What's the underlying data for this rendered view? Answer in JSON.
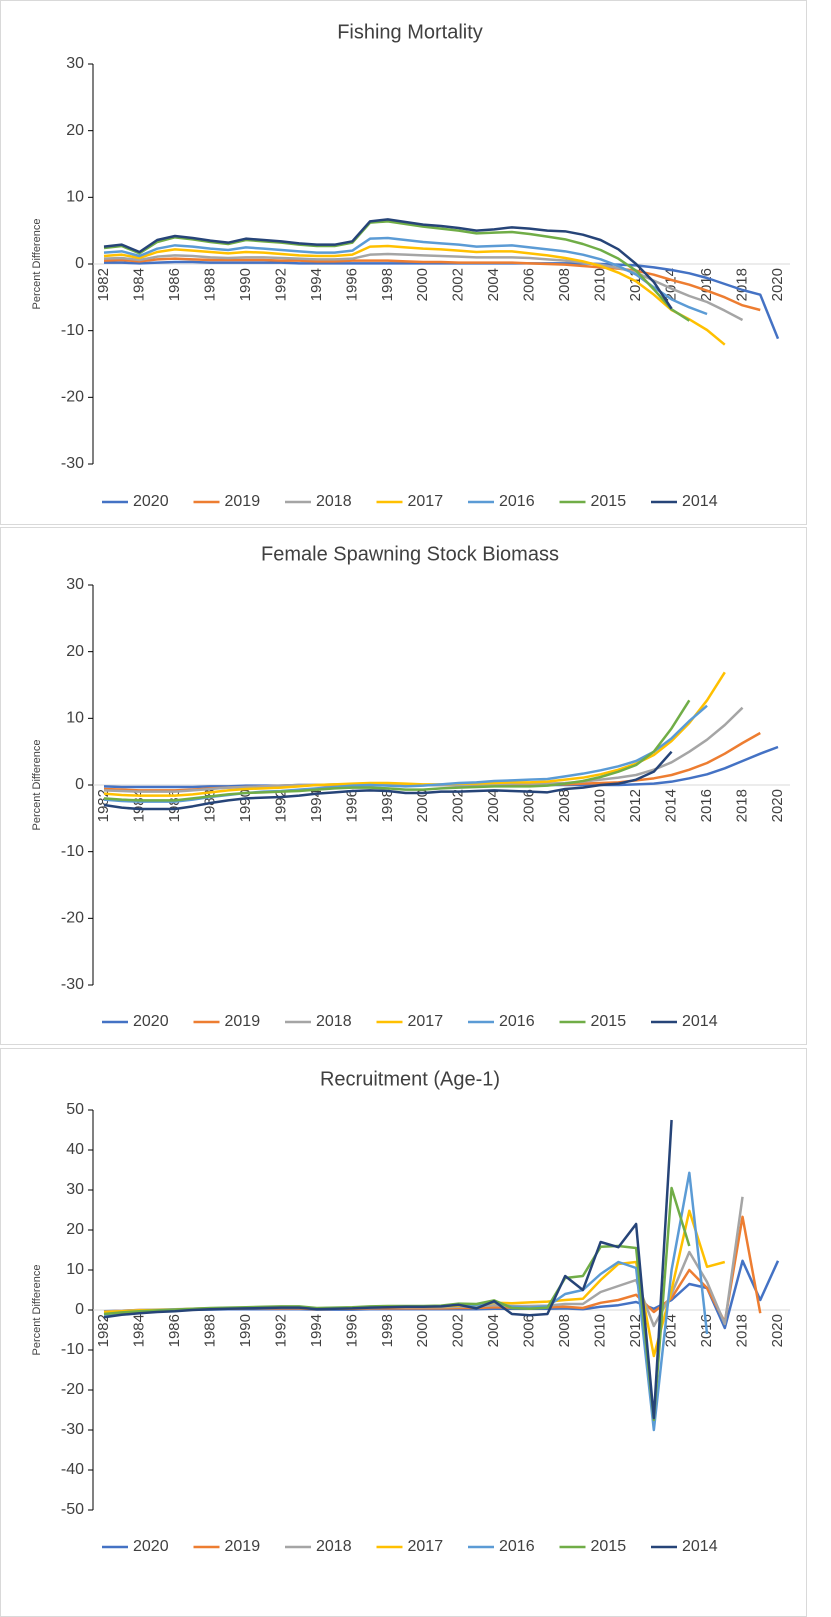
{
  "chart_data": [
    {
      "type": "line",
      "title": "Fishing Mortality",
      "y_label": "Percent Difference",
      "categories": [
        "1982",
        null,
        "1984",
        null,
        "1986",
        null,
        "1988",
        null,
        "1990",
        null,
        "1992",
        null,
        "1994",
        null,
        "1996",
        null,
        "1998",
        null,
        "2000",
        null,
        "2002",
        null,
        "2004",
        null,
        "2006",
        null,
        "2008",
        null,
        "2010",
        null,
        "2012",
        null,
        "2014",
        null,
        "2016",
        null,
        "2018",
        null,
        "2020"
      ],
      "ylim": [
        -30,
        30
      ],
      "yticks": [
        -30,
        -20,
        -10,
        0,
        10,
        20,
        30
      ],
      "grid": false,
      "legend": "bottom",
      "series": [
        {
          "name": "2020",
          "color": "#4472c4",
          "values": [
            0.2,
            0.2,
            0.1,
            0.2,
            0.3,
            0.3,
            0.2,
            0.2,
            0.2,
            0.2,
            0.2,
            0.1,
            0.1,
            0.1,
            0.1,
            0.1,
            0.1,
            0.1,
            0.1,
            0.1,
            0.1,
            0.1,
            0.1,
            0.1,
            0.1,
            0.1,
            0.1,
            0.1,
            0.0,
            -0.1,
            -0.2,
            -0.5,
            -0.9,
            -1.4,
            -2.1,
            -3.0,
            -3.9,
            -4.6,
            -11.2
          ]
        },
        {
          "name": "2019",
          "color": "#ed7d31",
          "values": [
            0.5,
            0.6,
            0.4,
            0.7,
            0.8,
            0.7,
            0.6,
            0.6,
            0.6,
            0.6,
            0.5,
            0.5,
            0.4,
            0.4,
            0.5,
            0.5,
            0.5,
            0.4,
            0.3,
            0.3,
            0.2,
            0.2,
            0.2,
            0.2,
            0.1,
            0.0,
            -0.1,
            -0.3,
            -0.5,
            -0.7,
            -1.0,
            -1.6,
            -2.4,
            -3.1,
            -4.0,
            -5.0,
            -6.2,
            -6.9,
            null
          ]
        },
        {
          "name": "2018",
          "color": "#a5a5a5",
          "values": [
            0.8,
            0.9,
            0.6,
            1.1,
            1.3,
            1.2,
            1.0,
            0.9,
            1.0,
            1.0,
            0.9,
            0.8,
            0.7,
            0.7,
            0.8,
            1.4,
            1.5,
            1.4,
            1.3,
            1.2,
            1.1,
            1.0,
            1.0,
            1.0,
            0.9,
            0.7,
            0.5,
            0.2,
            -0.1,
            -0.6,
            -1.3,
            -2.5,
            -3.7,
            -4.8,
            -5.7,
            -7.0,
            -8.4,
            null,
            null
          ]
        },
        {
          "name": "2017",
          "color": "#ffc000",
          "values": [
            1.2,
            1.4,
            0.9,
            1.8,
            2.2,
            2.0,
            1.8,
            1.6,
            1.8,
            1.7,
            1.5,
            1.3,
            1.2,
            1.2,
            1.4,
            2.6,
            2.7,
            2.5,
            2.3,
            2.2,
            2.0,
            1.8,
            1.9,
            1.9,
            1.6,
            1.3,
            0.9,
            0.4,
            -0.3,
            -1.3,
            -2.6,
            -4.6,
            -6.9,
            -8.3,
            -9.9,
            -12.1,
            null,
            null,
            null
          ]
        },
        {
          "name": "2016",
          "color": "#5b9bd5",
          "values": [
            1.7,
            1.9,
            1.2,
            2.3,
            2.8,
            2.6,
            2.3,
            2.1,
            2.5,
            2.3,
            2.1,
            1.9,
            1.7,
            1.7,
            2.0,
            3.8,
            3.9,
            3.6,
            3.3,
            3.1,
            2.9,
            2.6,
            2.7,
            2.8,
            2.5,
            2.2,
            1.9,
            1.4,
            0.7,
            -0.3,
            -1.6,
            -3.5,
            -5.3,
            -6.5,
            -7.5,
            null,
            null,
            null,
            null
          ]
        },
        {
          "name": "2015",
          "color": "#70ad47",
          "values": [
            2.4,
            2.7,
            1.6,
            3.3,
            4.0,
            3.7,
            3.3,
            3.0,
            3.6,
            3.4,
            3.2,
            2.9,
            2.7,
            2.7,
            3.2,
            6.2,
            6.4,
            6.0,
            5.6,
            5.3,
            5.0,
            4.6,
            4.7,
            4.8,
            4.5,
            4.1,
            3.7,
            3.0,
            2.1,
            0.8,
            -1.0,
            -3.8,
            -6.8,
            -8.5,
            null,
            null,
            null,
            null,
            null
          ]
        },
        {
          "name": "2014",
          "color": "#264478",
          "values": [
            2.6,
            2.9,
            1.8,
            3.6,
            4.2,
            3.9,
            3.5,
            3.2,
            3.8,
            3.6,
            3.4,
            3.1,
            2.9,
            2.9,
            3.4,
            6.4,
            6.7,
            6.3,
            5.9,
            5.7,
            5.4,
            5.0,
            5.2,
            5.5,
            5.3,
            5.0,
            4.9,
            4.4,
            3.6,
            2.2,
            0.0,
            -2.7,
            -6.7,
            null,
            null,
            null,
            null,
            null,
            null
          ]
        }
      ]
    },
    {
      "type": "line",
      "title": "Female Spawning Stock Biomass",
      "y_label": "Percent Difference",
      "categories": [
        "1982",
        null,
        "1984",
        null,
        "1986",
        null,
        "1988",
        null,
        "1990",
        null,
        "1992",
        null,
        "1994",
        null,
        "1996",
        null,
        "1998",
        null,
        "2000",
        null,
        "2002",
        null,
        "2004",
        null,
        "2006",
        null,
        "2008",
        null,
        "2010",
        null,
        "2012",
        null,
        "2014",
        null,
        "2016",
        null,
        "2018",
        null,
        "2020"
      ],
      "ylim": [
        -30,
        30
      ],
      "yticks": [
        -30,
        -20,
        -10,
        0,
        10,
        20,
        30
      ],
      "grid": false,
      "legend": "bottom",
      "series": [
        {
          "name": "2020",
          "color": "#4472c4",
          "values": [
            -0.2,
            -0.3,
            -0.3,
            -0.3,
            -0.3,
            -0.3,
            -0.2,
            -0.2,
            -0.1,
            -0.1,
            -0.1,
            0.0,
            0.0,
            0.0,
            0.0,
            0.0,
            0.0,
            0.0,
            0.0,
            0.0,
            0.0,
            0.0,
            0.0,
            0.0,
            0.0,
            0.0,
            0.0,
            0.0,
            0.0,
            0.0,
            0.1,
            0.2,
            0.5,
            1.0,
            1.6,
            2.5,
            3.6,
            4.7,
            5.7
          ]
        },
        {
          "name": "2019",
          "color": "#ed7d31",
          "values": [
            -0.6,
            -0.7,
            -0.8,
            -0.8,
            -0.8,
            -0.7,
            -0.5,
            -0.4,
            -0.3,
            -0.2,
            -0.1,
            -0.1,
            0.0,
            0.0,
            0.0,
            0.0,
            0.0,
            0.0,
            0.0,
            0.0,
            0.0,
            0.0,
            0.1,
            0.1,
            0.1,
            0.1,
            0.1,
            0.2,
            0.3,
            0.4,
            0.7,
            1.0,
            1.5,
            2.3,
            3.3,
            4.7,
            6.3,
            7.8,
            null
          ]
        },
        {
          "name": "2018",
          "color": "#a5a5a5",
          "values": [
            -0.8,
            -0.9,
            -1.0,
            -1.0,
            -1.0,
            -0.8,
            -0.6,
            -0.4,
            -0.3,
            -0.2,
            -0.1,
            0.0,
            0.0,
            0.1,
            0.1,
            0.1,
            0.1,
            0.0,
            0.0,
            0.0,
            0.0,
            0.1,
            0.1,
            0.2,
            0.2,
            0.2,
            0.3,
            0.5,
            0.8,
            1.1,
            1.5,
            2.3,
            3.4,
            5.0,
            6.8,
            9.0,
            11.6,
            null,
            null
          ]
        },
        {
          "name": "2017",
          "color": "#ffc000",
          "values": [
            -1.3,
            -1.5,
            -1.6,
            -1.6,
            -1.6,
            -1.4,
            -1.1,
            -0.8,
            -0.6,
            -0.5,
            -0.4,
            -0.2,
            0.0,
            0.1,
            0.2,
            0.3,
            0.3,
            0.2,
            0.1,
            0.1,
            0.2,
            0.2,
            0.3,
            0.4,
            0.4,
            0.5,
            0.8,
            1.1,
            1.6,
            2.3,
            3.2,
            4.5,
            6.6,
            9.3,
            12.7,
            16.9,
            null,
            null,
            null
          ]
        },
        {
          "name": "2016",
          "color": "#5b9bd5",
          "values": [
            -2.2,
            -2.4,
            -2.5,
            -2.5,
            -2.5,
            -2.2,
            -1.8,
            -1.5,
            -1.2,
            -1.0,
            -0.9,
            -0.7,
            -0.5,
            -0.3,
            -0.1,
            0.0,
            -0.1,
            -0.2,
            -0.1,
            0.1,
            0.3,
            0.4,
            0.6,
            0.7,
            0.8,
            0.9,
            1.3,
            1.7,
            2.2,
            2.8,
            3.6,
            5.0,
            7.0,
            9.6,
            11.9,
            null,
            null,
            null,
            null
          ]
        },
        {
          "name": "2015",
          "color": "#70ad47",
          "values": [
            -2.0,
            -2.2,
            -2.3,
            -2.3,
            -2.3,
            -2.0,
            -1.7,
            -1.4,
            -1.2,
            -1.1,
            -1.0,
            -0.9,
            -0.7,
            -0.5,
            -0.4,
            -0.4,
            -0.5,
            -0.7,
            -0.7,
            -0.5,
            -0.4,
            -0.3,
            -0.2,
            -0.2,
            -0.2,
            -0.1,
            0.2,
            0.6,
            1.2,
            2.0,
            3.0,
            5.0,
            8.5,
            12.7,
            null,
            null,
            null,
            null,
            null
          ]
        },
        {
          "name": "2014",
          "color": "#264478",
          "values": [
            -3.0,
            -3.4,
            -3.6,
            -3.6,
            -3.6,
            -3.2,
            -2.7,
            -2.3,
            -2.0,
            -1.9,
            -1.8,
            -1.6,
            -1.3,
            -1.1,
            -0.9,
            -0.8,
            -0.9,
            -1.2,
            -1.2,
            -1.0,
            -1.0,
            -0.9,
            -0.8,
            -0.9,
            -1.0,
            -1.1,
            -0.6,
            -0.4,
            0.0,
            0.2,
            0.8,
            2.0,
            5.0,
            null,
            null,
            null,
            null,
            null,
            null
          ]
        }
      ]
    },
    {
      "type": "line",
      "title": "Recruitment (Age-1)",
      "y_label": "Percent Difference",
      "categories": [
        "1982",
        null,
        "1984",
        null,
        "1986",
        null,
        "1988",
        null,
        "1990",
        null,
        "1992",
        null,
        "1994",
        null,
        "1996",
        null,
        "1998",
        null,
        "2000",
        null,
        "2002",
        null,
        "2004",
        null,
        "2006",
        null,
        "2008",
        null,
        "2010",
        null,
        "2012",
        null,
        "2014",
        null,
        "2016",
        null,
        "2018",
        null,
        "2020"
      ],
      "ylim": [
        -50,
        50
      ],
      "yticks": [
        -50,
        -40,
        -30,
        -20,
        -10,
        0,
        10,
        20,
        30,
        40,
        50
      ],
      "grid": false,
      "legend": "bottom",
      "series": [
        {
          "name": "2020",
          "color": "#4472c4",
          "values": [
            -0.3,
            -0.2,
            -0.1,
            0.0,
            0.0,
            0.1,
            0.1,
            0.2,
            0.2,
            0.2,
            0.2,
            0.2,
            0.1,
            0.1,
            0.1,
            0.2,
            0.2,
            0.2,
            0.2,
            0.2,
            0.2,
            0.2,
            0.3,
            0.3,
            0.3,
            0.3,
            0.4,
            0.2,
            0.8,
            1.2,
            2.0,
            0.3,
            2.5,
            6.5,
            5.5,
            -4.5,
            12.3,
            2.5,
            12.3
          ]
        },
        {
          "name": "2019",
          "color": "#ed7d31",
          "values": [
            -0.4,
            -0.2,
            0.0,
            0.0,
            0.1,
            0.2,
            0.3,
            0.3,
            0.4,
            0.4,
            0.4,
            0.4,
            0.2,
            0.3,
            0.3,
            0.4,
            0.4,
            0.4,
            0.4,
            0.4,
            0.5,
            0.5,
            0.7,
            0.6,
            0.6,
            0.7,
            0.8,
            0.5,
            1.8,
            2.5,
            3.8,
            -0.5,
            3.0,
            10.0,
            5.5,
            -3.0,
            23.3,
            -0.8,
            null
          ]
        },
        {
          "name": "2018",
          "color": "#a5a5a5",
          "values": [
            -0.4,
            -0.2,
            0.0,
            0.1,
            0.2,
            0.3,
            0.4,
            0.4,
            0.5,
            0.5,
            0.6,
            0.6,
            0.3,
            0.4,
            0.5,
            0.6,
            0.7,
            0.7,
            0.7,
            0.7,
            0.8,
            0.9,
            1.2,
            1.0,
            1.0,
            1.1,
            1.5,
            1.5,
            4.5,
            6.0,
            7.5,
            -4.0,
            4.0,
            14.5,
            7.0,
            -3.5,
            28.3,
            null,
            null
          ]
        },
        {
          "name": "2017",
          "color": "#ffc000",
          "values": [
            -0.5,
            -0.3,
            -0.1,
            0.0,
            0.1,
            0.3,
            0.4,
            0.5,
            0.6,
            0.6,
            0.7,
            0.7,
            0.4,
            0.5,
            0.6,
            0.7,
            0.8,
            0.8,
            0.8,
            0.9,
            1.1,
            1.2,
            1.8,
            1.7,
            1.9,
            2.1,
            2.5,
            2.8,
            7.5,
            11.5,
            12.0,
            -11.5,
            5.0,
            24.8,
            10.8,
            12.0,
            null,
            null,
            null
          ]
        },
        {
          "name": "2016",
          "color": "#5b9bd5",
          "values": [
            -1.2,
            -0.8,
            -0.5,
            -0.2,
            0.0,
            0.2,
            0.4,
            0.5,
            0.6,
            0.7,
            0.8,
            0.8,
            0.4,
            0.5,
            0.6,
            0.8,
            0.9,
            0.9,
            0.9,
            1.0,
            1.3,
            1.2,
            2.0,
            0.8,
            0.6,
            0.9,
            4.0,
            5.0,
            9.0,
            12.0,
            10.5,
            -30.0,
            10.0,
            34.3,
            -6.0,
            null,
            null,
            null,
            null
          ]
        },
        {
          "name": "2015",
          "color": "#70ad47",
          "values": [
            -1.0,
            -0.6,
            -0.3,
            -0.1,
            0.1,
            0.3,
            0.5,
            0.6,
            0.7,
            0.8,
            0.9,
            0.9,
            0.5,
            0.6,
            0.7,
            0.9,
            1.0,
            1.0,
            1.0,
            1.1,
            1.6,
            1.5,
            2.4,
            0.5,
            0.3,
            0.6,
            8.0,
            8.5,
            15.8,
            16.0,
            15.5,
            -27.5,
            30.5,
            16.0,
            null,
            null,
            null,
            null,
            null
          ]
        },
        {
          "name": "2014",
          "color": "#264478",
          "values": [
            -1.8,
            -1.2,
            -0.8,
            -0.5,
            -0.3,
            0.0,
            0.2,
            0.3,
            0.4,
            0.5,
            0.6,
            0.6,
            0.2,
            0.3,
            0.4,
            0.6,
            0.7,
            0.8,
            0.8,
            0.9,
            1.3,
            0.4,
            2.2,
            -1.0,
            -1.3,
            -1.0,
            8.5,
            5.0,
            17.0,
            15.7,
            21.5,
            -27.0,
            47.5,
            null,
            null,
            null,
            null,
            null,
            null
          ]
        }
      ]
    }
  ]
}
